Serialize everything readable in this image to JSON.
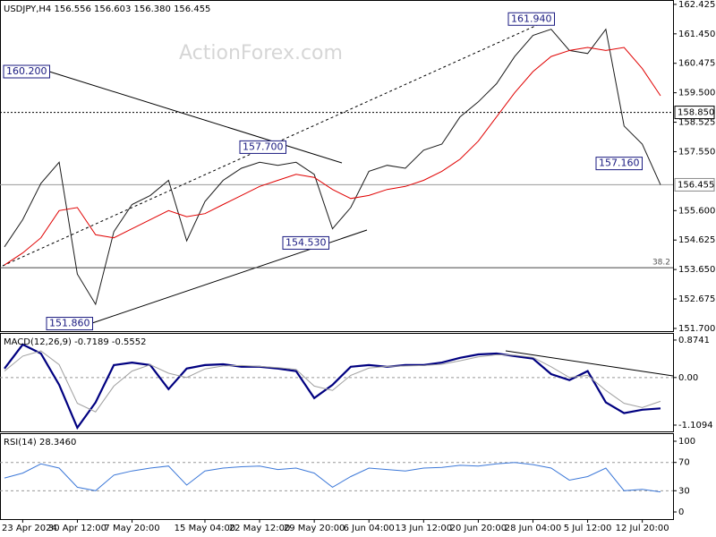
{
  "chart_data": [
    {
      "type": "line",
      "title": "USDJPY,H4  156.556 156.603 156.380 156.455",
      "watermark": "ActionForex.com",
      "categories": [
        null,
        "23 Apr 2024",
        null,
        null,
        "30 Apr 12:00",
        null,
        null,
        "7 May 20:00",
        null,
        null,
        null,
        "15 May 04:00",
        null,
        null,
        "22 May 12:00",
        null,
        null,
        "29 May 20:00",
        null,
        null,
        "6 Jun 04:00",
        null,
        null,
        "13 Jun 12:00",
        null,
        null,
        "20 Jun 20:00",
        null,
        null,
        "28 Jun 04:00",
        null,
        null,
        "5 Jul 12:00",
        null,
        null,
        "12 Jul 20:00",
        null
      ],
      "series": [
        {
          "color": "#1a1a1a",
          "values": [
            154.4,
            155.3,
            156.5,
            157.2,
            153.5,
            152.5,
            154.9,
            155.8,
            156.1,
            156.6,
            154.6,
            155.9,
            156.6,
            157.0,
            157.2,
            157.1,
            157.2,
            156.8,
            155.0,
            155.7,
            156.9,
            157.1,
            157.0,
            157.6,
            157.8,
            158.7,
            159.2,
            159.8,
            160.7,
            161.4,
            161.6,
            160.9,
            160.8,
            161.6,
            158.4,
            157.8,
            156.455
          ]
        },
        {
          "color": "#e00000",
          "values": [
            153.8,
            154.2,
            154.7,
            155.6,
            155.7,
            154.8,
            154.7,
            155.0,
            155.3,
            155.6,
            155.4,
            155.5,
            155.8,
            156.1,
            156.4,
            156.6,
            156.8,
            156.7,
            156.3,
            156.0,
            156.1,
            156.3,
            156.4,
            156.6,
            156.9,
            157.3,
            157.9,
            158.7,
            159.5,
            160.2,
            160.7,
            160.9,
            161.0,
            160.9,
            161.0,
            160.3,
            159.4
          ]
        }
      ],
      "ylim": [
        151.61,
        162.57
      ],
      "yticks": [
        162.425,
        {
          "value": 161.45,
          "label": "161.450"
        },
        160.475,
        {
          "value": 159.5,
          "label": "159.500"
        },
        158.525,
        {
          "value": 157.55,
          "label": "157.550"
        },
        {
          "value": 155.6,
          "label": "155.600"
        },
        154.625,
        {
          "value": 153.65,
          "label": "153.650"
        },
        152.675,
        {
          "value": 151.7,
          "label": "151.700"
        }
      ],
      "levels": [
        {
          "value": 158.85,
          "label": "158.850"
        },
        {
          "value": 156.455,
          "label": "156.455"
        }
      ],
      "fib": {
        "value": 153.71,
        "label": "38.2"
      },
      "annotations": [
        {
          "value": 160.2,
          "label": "160.200"
        },
        {
          "value": 157.7,
          "label": "157.700"
        },
        {
          "value": 154.53,
          "label": "154.530"
        },
        {
          "value": 151.86,
          "label": "151.860"
        },
        {
          "value": 161.94,
          "label": "161.940"
        },
        {
          "value": 157.16,
          "label": "157.160"
        }
      ]
    },
    {
      "type": "line",
      "title": "MACD(12,26,9) -0.7189 -0.5552",
      "series": [
        {
          "color": "#000080",
          "values": [
            0.21,
            0.77,
            0.56,
            -0.17,
            -1.17,
            -0.58,
            0.29,
            0.35,
            0.29,
            -0.27,
            0.21,
            0.29,
            0.31,
            0.25,
            0.25,
            0.21,
            0.15,
            -0.48,
            -0.17,
            0.25,
            0.29,
            0.25,
            0.29,
            0.29,
            0.35,
            0.46,
            0.54,
            0.56,
            0.5,
            0.44,
            0.08,
            -0.06,
            0.15,
            -0.58,
            -0.83,
            -0.75,
            -0.7189
          ]
        },
        {
          "color": "#a0a0a0",
          "values": [
            0.15,
            0.5,
            0.62,
            0.3,
            -0.6,
            -0.8,
            -0.2,
            0.15,
            0.3,
            0.1,
            0.0,
            0.2,
            0.27,
            0.28,
            0.26,
            0.23,
            0.19,
            -0.2,
            -0.3,
            0.05,
            0.22,
            0.26,
            0.27,
            0.28,
            0.31,
            0.39,
            0.48,
            0.53,
            0.52,
            0.47,
            0.25,
            0.0,
            0.05,
            -0.3,
            -0.6,
            -0.7,
            -0.5552
          ]
        }
      ],
      "ylim": [
        -1.256,
        1.04
      ],
      "yticks": [
        0.8741,
        {
          "value": 0,
          "label": "0.00"
        },
        -1.1094
      ],
      "levels": [
        0
      ]
    },
    {
      "type": "line",
      "title": "RSI(14) 28.3460",
      "series": [
        {
          "color": "#3c78d8",
          "values": [
            48,
            55,
            68,
            62,
            35,
            30,
            52,
            58,
            62,
            65,
            38,
            58,
            62,
            64,
            65,
            60,
            62,
            55,
            35,
            50,
            62,
            60,
            58,
            62,
            63,
            66,
            65,
            68,
            70,
            67,
            62,
            45,
            50,
            62,
            30,
            32,
            28.346
          ]
        }
      ],
      "ylim": [
        -10.1,
        111.4
      ],
      "yticks": [
        100,
        70,
        30,
        0
      ],
      "levels": [
        70,
        30
      ]
    }
  ]
}
